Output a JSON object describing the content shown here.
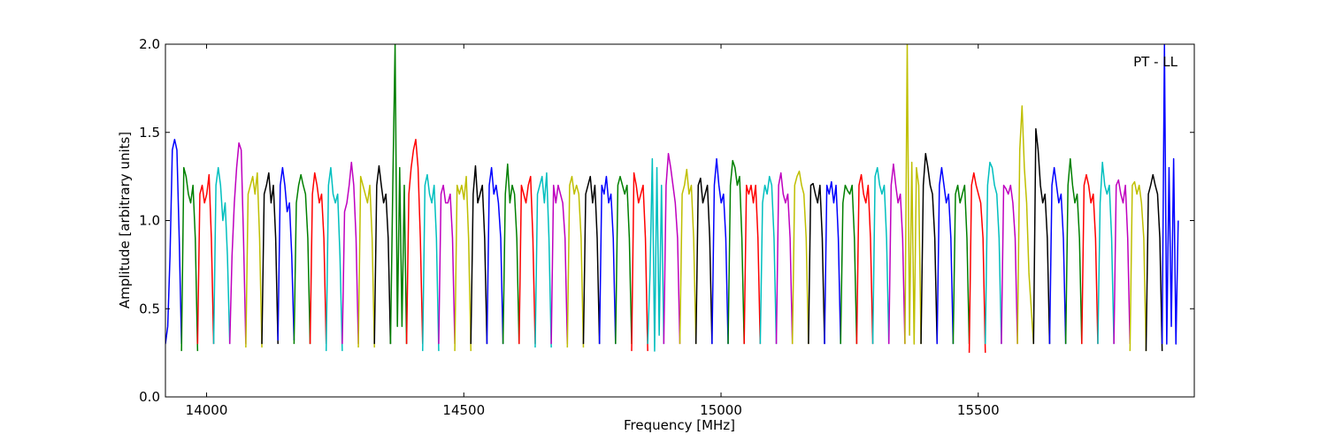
{
  "chart_data": {
    "type": "line",
    "title": "",
    "annotation": "PT - LL",
    "xlabel": "Frequency [MHz]",
    "ylabel": "Amplitude [arbitrary units]",
    "xlim": [
      13920,
      15920
    ],
    "ylim": [
      0.0,
      2.0
    ],
    "xticks": [
      14000,
      14500,
      15000,
      15500
    ],
    "xtick_labels": [
      "14000",
      "14500",
      "15000",
      "15500"
    ],
    "yticks": [
      0.0,
      0.5,
      1.0,
      1.5,
      2.0
    ],
    "ytick_labels": [
      "0.0",
      "0.5",
      "1.0",
      "1.5",
      "2.0"
    ],
    "grid": false,
    "legend": "none",
    "colors": [
      "#0000ff",
      "#008000",
      "#ff0000",
      "#00bfbf",
      "#bf00bf",
      "#bfbf00",
      "#000000"
    ],
    "channel_width_mhz": 31.25,
    "series": [
      {
        "color": "#0000ff",
        "values": [
          0.3,
          0.4,
          0.8,
          1.4,
          1.46,
          1.4,
          0.9,
          0.3
        ]
      },
      {
        "color": "#008000",
        "values": [
          0.26,
          1.3,
          1.25,
          1.15,
          1.1,
          1.2,
          0.9,
          0.26
        ]
      },
      {
        "color": "#ff0000",
        "values": [
          0.3,
          1.15,
          1.2,
          1.1,
          1.15,
          1.26,
          0.9,
          0.3
        ]
      },
      {
        "color": "#00bfbf",
        "values": [
          0.3,
          1.2,
          1.3,
          1.2,
          1.0,
          1.1,
          0.8,
          0.3
        ]
      },
      {
        "color": "#bf00bf",
        "values": [
          0.3,
          0.8,
          1.1,
          1.3,
          1.44,
          1.4,
          0.9,
          0.3
        ]
      },
      {
        "color": "#bfbf00",
        "values": [
          0.28,
          1.15,
          1.2,
          1.25,
          1.15,
          1.27,
          0.9,
          0.28
        ]
      },
      {
        "color": "#000000",
        "values": [
          0.3,
          1.15,
          1.2,
          1.27,
          1.1,
          1.2,
          0.9,
          0.3
        ]
      },
      {
        "color": "#0000ff",
        "values": [
          0.32,
          1.2,
          1.3,
          1.2,
          1.05,
          1.1,
          0.8,
          0.32
        ]
      },
      {
        "color": "#008000",
        "values": [
          0.3,
          1.1,
          1.2,
          1.26,
          1.2,
          1.15,
          0.9,
          0.3
        ]
      },
      {
        "color": "#ff0000",
        "values": [
          0.3,
          1.15,
          1.27,
          1.2,
          1.1,
          1.15,
          0.9,
          0.3
        ]
      },
      {
        "color": "#00bfbf",
        "values": [
          0.26,
          1.2,
          1.3,
          1.15,
          1.1,
          1.15,
          0.8,
          0.26
        ]
      },
      {
        "color": "#bf00bf",
        "values": [
          0.3,
          1.05,
          1.1,
          1.2,
          1.33,
          1.2,
          0.9,
          0.3
        ]
      },
      {
        "color": "#bfbf00",
        "values": [
          0.28,
          1.25,
          1.2,
          1.15,
          1.1,
          1.2,
          0.9,
          0.28
        ]
      },
      {
        "color": "#000000",
        "values": [
          0.3,
          1.2,
          1.31,
          1.2,
          1.1,
          1.15,
          0.9,
          0.3
        ]
      },
      {
        "color": "#008000",
        "values": [
          0.3,
          1.2,
          2.0,
          0.4,
          1.3,
          0.4,
          1.2,
          0.3
        ]
      },
      {
        "color": "#ff0000",
        "values": [
          0.3,
          1.15,
          1.3,
          1.4,
          1.46,
          1.3,
          0.9,
          0.3
        ]
      },
      {
        "color": "#00bfbf",
        "values": [
          0.26,
          1.2,
          1.26,
          1.15,
          1.1,
          1.2,
          0.9,
          0.26
        ]
      },
      {
        "color": "#bf00bf",
        "values": [
          0.3,
          1.15,
          1.2,
          1.1,
          1.1,
          1.15,
          0.9,
          0.3
        ]
      },
      {
        "color": "#bfbf00",
        "values": [
          0.26,
          1.2,
          1.15,
          1.2,
          1.12,
          1.25,
          0.9,
          0.26
        ]
      },
      {
        "color": "#000000",
        "values": [
          0.3,
          1.15,
          1.31,
          1.1,
          1.15,
          1.2,
          0.9,
          0.3
        ]
      },
      {
        "color": "#0000ff",
        "values": [
          0.3,
          1.2,
          1.3,
          1.15,
          1.2,
          1.1,
          0.9,
          0.3
        ]
      },
      {
        "color": "#008000",
        "values": [
          0.3,
          1.15,
          1.32,
          1.1,
          1.2,
          1.15,
          0.9,
          0.3
        ]
      },
      {
        "color": "#ff0000",
        "values": [
          0.3,
          1.2,
          1.15,
          1.1,
          1.2,
          1.25,
          0.9,
          0.3
        ]
      },
      {
        "color": "#00bfbf",
        "values": [
          0.28,
          1.15,
          1.2,
          1.25,
          1.1,
          1.27,
          0.9,
          0.28
        ]
      },
      {
        "color": "#bf00bf",
        "values": [
          0.3,
          1.2,
          1.1,
          1.2,
          1.15,
          1.1,
          0.9,
          0.3
        ]
      },
      {
        "color": "#bfbf00",
        "values": [
          0.28,
          1.2,
          1.25,
          1.15,
          1.2,
          1.15,
          0.9,
          0.28
        ]
      },
      {
        "color": "#000000",
        "values": [
          0.3,
          1.15,
          1.2,
          1.25,
          1.1,
          1.2,
          0.9,
          0.3
        ]
      },
      {
        "color": "#0000ff",
        "values": [
          0.3,
          1.2,
          1.15,
          1.25,
          1.1,
          1.15,
          0.9,
          0.3
        ]
      },
      {
        "color": "#008000",
        "values": [
          0.3,
          1.2,
          1.25,
          1.2,
          1.15,
          1.2,
          0.9,
          0.3
        ]
      },
      {
        "color": "#ff0000",
        "values": [
          0.26,
          1.27,
          1.2,
          1.1,
          1.15,
          1.2,
          0.9,
          0.26
        ]
      },
      {
        "color": "#00bfbf",
        "values": [
          0.3,
          0.7,
          1.35,
          0.26,
          1.3,
          0.35,
          1.2,
          0.3
        ]
      },
      {
        "color": "#bf00bf",
        "values": [
          0.3,
          1.2,
          1.38,
          1.3,
          1.2,
          1.1,
          0.9,
          0.3
        ]
      },
      {
        "color": "#bfbf00",
        "values": [
          0.3,
          1.15,
          1.2,
          1.29,
          1.15,
          1.2,
          0.9,
          0.3
        ]
      },
      {
        "color": "#000000",
        "values": [
          0.3,
          1.2,
          1.24,
          1.1,
          1.15,
          1.2,
          0.9,
          0.3
        ]
      },
      {
        "color": "#0000ff",
        "values": [
          0.3,
          1.2,
          1.35,
          1.2,
          1.1,
          1.15,
          0.9,
          0.3
        ]
      },
      {
        "color": "#008000",
        "values": [
          0.3,
          1.2,
          1.34,
          1.3,
          1.2,
          1.25,
          0.9,
          0.3
        ]
      },
      {
        "color": "#ff0000",
        "values": [
          0.3,
          1.2,
          1.15,
          1.2,
          1.1,
          1.2,
          0.9,
          0.3
        ]
      },
      {
        "color": "#00bfbf",
        "values": [
          0.3,
          1.1,
          1.2,
          1.15,
          1.25,
          1.2,
          0.9,
          0.3
        ]
      },
      {
        "color": "#bf00bf",
        "values": [
          0.3,
          1.2,
          1.27,
          1.15,
          1.1,
          1.15,
          0.9,
          0.3
        ]
      },
      {
        "color": "#bfbf00",
        "values": [
          0.3,
          1.2,
          1.25,
          1.28,
          1.2,
          1.15,
          0.9,
          0.3
        ]
      },
      {
        "color": "#000000",
        "values": [
          0.3,
          1.2,
          1.21,
          1.15,
          1.1,
          1.2,
          0.9,
          0.3
        ]
      },
      {
        "color": "#0000ff",
        "values": [
          0.3,
          1.2,
          1.15,
          1.22,
          1.1,
          1.2,
          0.9,
          0.3
        ]
      },
      {
        "color": "#008000",
        "values": [
          0.3,
          1.1,
          1.2,
          1.17,
          1.15,
          1.2,
          0.9,
          0.3
        ]
      },
      {
        "color": "#ff0000",
        "values": [
          0.3,
          1.2,
          1.26,
          1.15,
          1.1,
          1.2,
          0.9,
          0.3
        ]
      },
      {
        "color": "#00bfbf",
        "values": [
          0.3,
          1.25,
          1.3,
          1.2,
          1.15,
          1.2,
          0.9,
          0.3
        ]
      },
      {
        "color": "#bf00bf",
        "values": [
          0.3,
          1.2,
          1.32,
          1.2,
          1.1,
          1.15,
          0.9,
          0.3
        ]
      },
      {
        "color": "#bfbf00",
        "values": [
          0.3,
          2.0,
          0.35,
          1.33,
          0.3,
          1.3,
          1.2,
          0.3
        ]
      },
      {
        "color": "#000000",
        "values": [
          0.3,
          1.2,
          1.38,
          1.3,
          1.2,
          1.15,
          0.9,
          0.3
        ]
      },
      {
        "color": "#0000ff",
        "values": [
          0.3,
          1.2,
          1.3,
          1.2,
          1.1,
          1.15,
          0.9,
          0.3
        ]
      },
      {
        "color": "#008000",
        "values": [
          0.3,
          1.15,
          1.2,
          1.1,
          1.15,
          1.2,
          0.9,
          0.3
        ]
      },
      {
        "color": "#ff0000",
        "values": [
          0.25,
          1.2,
          1.27,
          1.2,
          1.15,
          1.1,
          0.9,
          0.25
        ]
      },
      {
        "color": "#00bfbf",
        "values": [
          0.3,
          1.2,
          1.33,
          1.3,
          1.2,
          1.15,
          0.9,
          0.3
        ]
      },
      {
        "color": "#bf00bf",
        "values": [
          0.3,
          1.2,
          1.18,
          1.15,
          1.2,
          1.1,
          0.9,
          0.3
        ]
      },
      {
        "color": "#bfbf00",
        "values": [
          0.3,
          1.4,
          1.65,
          1.3,
          1.1,
          0.7,
          0.5,
          0.3
        ]
      },
      {
        "color": "#000000",
        "values": [
          0.3,
          1.52,
          1.4,
          1.2,
          1.1,
          1.15,
          0.9,
          0.3
        ]
      },
      {
        "color": "#0000ff",
        "values": [
          0.3,
          1.2,
          1.3,
          1.2,
          1.1,
          1.15,
          0.9,
          0.3
        ]
      },
      {
        "color": "#008000",
        "values": [
          0.3,
          1.2,
          1.35,
          1.2,
          1.1,
          1.15,
          0.9,
          0.3
        ]
      },
      {
        "color": "#ff0000",
        "values": [
          0.3,
          1.2,
          1.26,
          1.2,
          1.1,
          1.15,
          0.9,
          0.3
        ]
      },
      {
        "color": "#00bfbf",
        "values": [
          0.3,
          1.1,
          1.33,
          1.2,
          1.15,
          1.2,
          0.9,
          0.3
        ]
      },
      {
        "color": "#bf00bf",
        "values": [
          0.3,
          1.2,
          1.23,
          1.15,
          1.1,
          1.2,
          0.9,
          0.3
        ]
      },
      {
        "color": "#bfbf00",
        "values": [
          0.26,
          1.2,
          1.22,
          1.15,
          1.2,
          1.1,
          0.9,
          0.26
        ]
      },
      {
        "color": "#000000",
        "values": [
          0.26,
          1.15,
          1.2,
          1.26,
          1.2,
          1.15,
          0.9,
          0.26
        ]
      },
      {
        "color": "#0000ff",
        "values": [
          0.3,
          2.0,
          0.3,
          1.3,
          0.4,
          1.35,
          0.3,
          1.0
        ]
      }
    ]
  }
}
